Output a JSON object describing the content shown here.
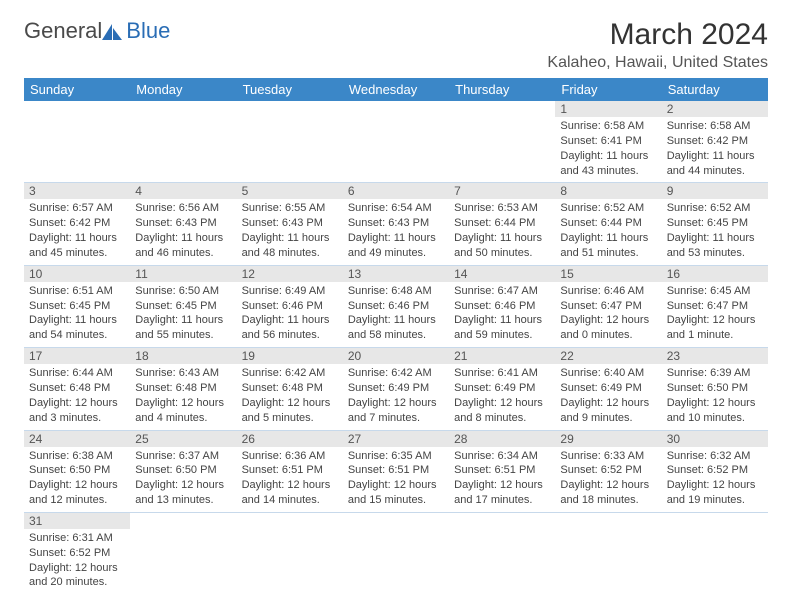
{
  "logo": {
    "general": "General",
    "blue": "Blue"
  },
  "title": "March 2024",
  "location": "Kalaheo, Hawaii, United States",
  "colors": {
    "header_bg": "#3b87c8",
    "header_fg": "#ffffff",
    "daynum_bg": "#e7e7e7",
    "row_border": "#c7d9eb",
    "logo_blue": "#2a6db5"
  },
  "weekdays": [
    "Sunday",
    "Monday",
    "Tuesday",
    "Wednesday",
    "Thursday",
    "Friday",
    "Saturday"
  ],
  "days": {
    "1": {
      "sunrise": "6:58 AM",
      "sunset": "6:41 PM",
      "daylight": "11 hours and 43 minutes."
    },
    "2": {
      "sunrise": "6:58 AM",
      "sunset": "6:42 PM",
      "daylight": "11 hours and 44 minutes."
    },
    "3": {
      "sunrise": "6:57 AM",
      "sunset": "6:42 PM",
      "daylight": "11 hours and 45 minutes."
    },
    "4": {
      "sunrise": "6:56 AM",
      "sunset": "6:43 PM",
      "daylight": "11 hours and 46 minutes."
    },
    "5": {
      "sunrise": "6:55 AM",
      "sunset": "6:43 PM",
      "daylight": "11 hours and 48 minutes."
    },
    "6": {
      "sunrise": "6:54 AM",
      "sunset": "6:43 PM",
      "daylight": "11 hours and 49 minutes."
    },
    "7": {
      "sunrise": "6:53 AM",
      "sunset": "6:44 PM",
      "daylight": "11 hours and 50 minutes."
    },
    "8": {
      "sunrise": "6:52 AM",
      "sunset": "6:44 PM",
      "daylight": "11 hours and 51 minutes."
    },
    "9": {
      "sunrise": "6:52 AM",
      "sunset": "6:45 PM",
      "daylight": "11 hours and 53 minutes."
    },
    "10": {
      "sunrise": "6:51 AM",
      "sunset": "6:45 PM",
      "daylight": "11 hours and 54 minutes."
    },
    "11": {
      "sunrise": "6:50 AM",
      "sunset": "6:45 PM",
      "daylight": "11 hours and 55 minutes."
    },
    "12": {
      "sunrise": "6:49 AM",
      "sunset": "6:46 PM",
      "daylight": "11 hours and 56 minutes."
    },
    "13": {
      "sunrise": "6:48 AM",
      "sunset": "6:46 PM",
      "daylight": "11 hours and 58 minutes."
    },
    "14": {
      "sunrise": "6:47 AM",
      "sunset": "6:46 PM",
      "daylight": "11 hours and 59 minutes."
    },
    "15": {
      "sunrise": "6:46 AM",
      "sunset": "6:47 PM",
      "daylight": "12 hours and 0 minutes."
    },
    "16": {
      "sunrise": "6:45 AM",
      "sunset": "6:47 PM",
      "daylight": "12 hours and 1 minute."
    },
    "17": {
      "sunrise": "6:44 AM",
      "sunset": "6:48 PM",
      "daylight": "12 hours and 3 minutes."
    },
    "18": {
      "sunrise": "6:43 AM",
      "sunset": "6:48 PM",
      "daylight": "12 hours and 4 minutes."
    },
    "19": {
      "sunrise": "6:42 AM",
      "sunset": "6:48 PM",
      "daylight": "12 hours and 5 minutes."
    },
    "20": {
      "sunrise": "6:42 AM",
      "sunset": "6:49 PM",
      "daylight": "12 hours and 7 minutes."
    },
    "21": {
      "sunrise": "6:41 AM",
      "sunset": "6:49 PM",
      "daylight": "12 hours and 8 minutes."
    },
    "22": {
      "sunrise": "6:40 AM",
      "sunset": "6:49 PM",
      "daylight": "12 hours and 9 minutes."
    },
    "23": {
      "sunrise": "6:39 AM",
      "sunset": "6:50 PM",
      "daylight": "12 hours and 10 minutes."
    },
    "24": {
      "sunrise": "6:38 AM",
      "sunset": "6:50 PM",
      "daylight": "12 hours and 12 minutes."
    },
    "25": {
      "sunrise": "6:37 AM",
      "sunset": "6:50 PM",
      "daylight": "12 hours and 13 minutes."
    },
    "26": {
      "sunrise": "6:36 AM",
      "sunset": "6:51 PM",
      "daylight": "12 hours and 14 minutes."
    },
    "27": {
      "sunrise": "6:35 AM",
      "sunset": "6:51 PM",
      "daylight": "12 hours and 15 minutes."
    },
    "28": {
      "sunrise": "6:34 AM",
      "sunset": "6:51 PM",
      "daylight": "12 hours and 17 minutes."
    },
    "29": {
      "sunrise": "6:33 AM",
      "sunset": "6:52 PM",
      "daylight": "12 hours and 18 minutes."
    },
    "30": {
      "sunrise": "6:32 AM",
      "sunset": "6:52 PM",
      "daylight": "12 hours and 19 minutes."
    },
    "31": {
      "sunrise": "6:31 AM",
      "sunset": "6:52 PM",
      "daylight": "12 hours and 20 minutes."
    }
  },
  "labels": {
    "sunrise": "Sunrise:",
    "sunset": "Sunset:",
    "daylight": "Daylight:"
  },
  "layout": {
    "first_weekday_index": 5,
    "num_days": 31
  }
}
